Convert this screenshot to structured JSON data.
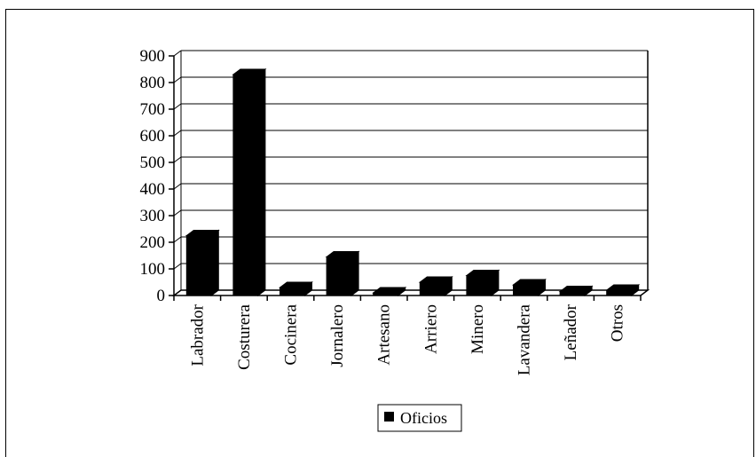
{
  "chart_data": {
    "type": "bar",
    "title": "",
    "xlabel": "",
    "ylabel": "",
    "categories": [
      "Labrador",
      "Costurera",
      "Cocinera",
      "Jornalero",
      "Artesano",
      "Arriero",
      "Minero",
      "Lavandera",
      "Leñador",
      "Otros"
    ],
    "series": [
      {
        "name": "Oficios",
        "color": "#000000",
        "values": [
          225,
          830,
          30,
          145,
          10,
          50,
          75,
          40,
          15,
          20
        ]
      }
    ],
    "ylim": [
      0,
      900
    ],
    "yticks": [
      0,
      100,
      200,
      300,
      400,
      500,
      600,
      700,
      800,
      900
    ],
    "grid": true,
    "legend": "bottom",
    "style": "3d-column"
  }
}
